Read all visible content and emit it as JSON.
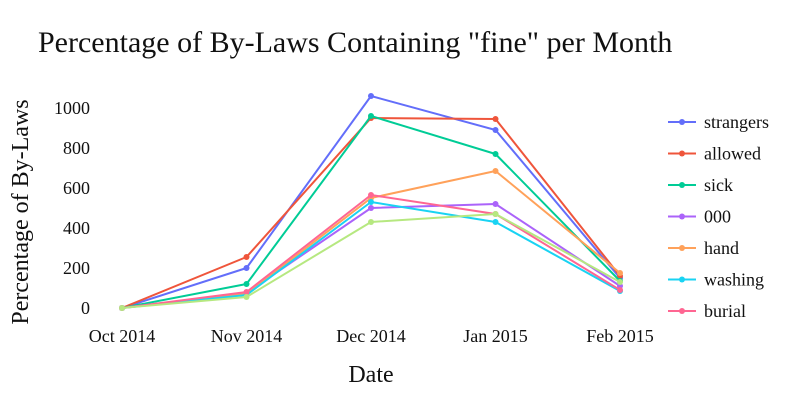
{
  "chart_data": {
    "type": "line",
    "title": "Percentage of By-Laws Containing \"fine\" per Month",
    "xlabel": "Date",
    "ylabel": "Percentage of By-Laws",
    "categories": [
      "Oct 2014",
      "Nov 2014",
      "Dec 2014",
      "Jan 2015",
      "Feb 2015"
    ],
    "y_ticks": [
      0,
      200,
      400,
      600,
      800,
      1000
    ],
    "ylim": [
      -20,
      1080
    ],
    "grid": false,
    "legend_position": "right",
    "series": [
      {
        "name": "strangers",
        "color": "#636efa",
        "values": [
          0,
          200,
          1060,
          890,
          150
        ]
      },
      {
        "name": "allowed",
        "color": "#ef553b",
        "values": [
          0,
          255,
          950,
          945,
          160
        ]
      },
      {
        "name": "sick",
        "color": "#00cc96",
        "values": [
          0,
          120,
          960,
          770,
          135
        ]
      },
      {
        "name": "000",
        "color": "#ab63fa",
        "values": [
          0,
          75,
          500,
          520,
          110
        ]
      },
      {
        "name": "hand",
        "color": "#ffa15a",
        "values": [
          0,
          70,
          550,
          685,
          175
        ]
      },
      {
        "name": "washing",
        "color": "#19d3f3",
        "values": [
          0,
          65,
          530,
          430,
          85
        ]
      },
      {
        "name": "burial",
        "color": "#ff6692",
        "values": [
          0,
          80,
          565,
          470,
          90
        ]
      },
      {
        "name": "",
        "color": "#b6e880",
        "values": [
          0,
          55,
          430,
          470,
          130
        ]
      }
    ]
  }
}
